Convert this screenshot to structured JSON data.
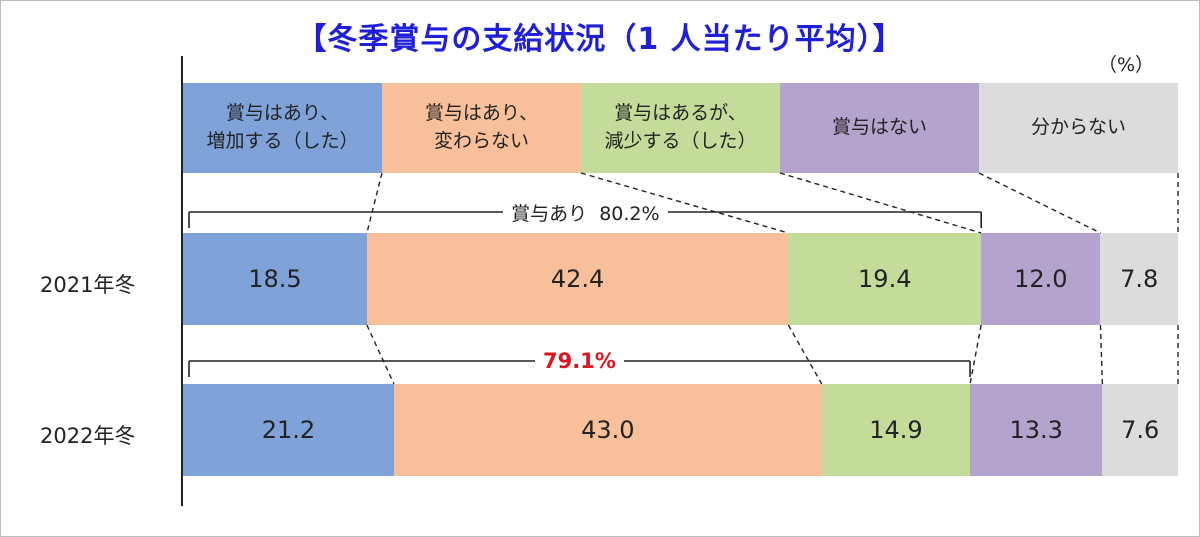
{
  "title": "【冬季賞与の支給状況（1 人当たり平均）】",
  "unit": "（%）",
  "colors": {
    "increase": "#7fa3d9",
    "unchanged": "#f8c09a",
    "decrease": "#c3dc9a",
    "none": "#b4a3cd",
    "unknown": "#dcdcdc",
    "title": "#1f1fd9",
    "highlight": "#e0141e"
  },
  "chart_data": {
    "type": "bar",
    "orientation": "horizontal",
    "stacked": true,
    "percent": true,
    "title": "【冬季賞与の支給状況（1 人当たり平均）】",
    "categories": [
      "2021年冬",
      "2022年冬"
    ],
    "series": [
      {
        "name": "賞与はあり、\n増加する（した）",
        "values": [
          18.5,
          21.2
        ]
      },
      {
        "name": "賞与はあり、\n変わらない",
        "values": [
          42.4,
          43.0
        ]
      },
      {
        "name": "賞与はあるが、\n減少する（した）",
        "values": [
          19.4,
          14.9
        ]
      },
      {
        "name": "賞与はない",
        "values": [
          12.0,
          13.3
        ]
      },
      {
        "name": "分からない",
        "values": [
          7.8,
          7.6
        ]
      }
    ],
    "value_labels": [
      [
        "18.5",
        "42.4",
        "19.4",
        "12.0",
        "7.8"
      ],
      [
        "21.2",
        "43.0",
        "14.9",
        "13.3",
        "7.6"
      ]
    ],
    "annotations": [
      {
        "label": "賞与あり",
        "value": "80.2%"
      },
      {
        "value": "79.1%"
      }
    ],
    "legend_position": "top",
    "grid": false
  }
}
